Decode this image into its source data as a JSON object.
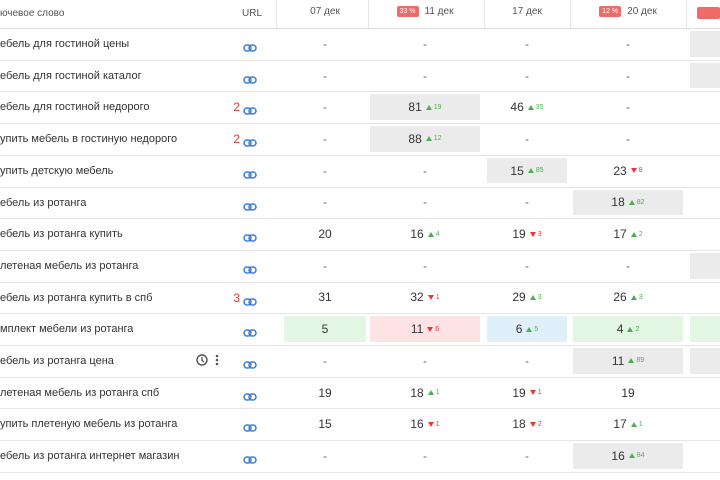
{
  "header": {
    "keyword": "ючевое слово",
    "url": "URL",
    "dates": [
      {
        "label": "07 дек"
      },
      {
        "label": "11 дек",
        "badge": "33 %"
      },
      {
        "label": "17 дек"
      },
      {
        "label": "20 дек",
        "badge": "12 %"
      }
    ]
  },
  "rows": [
    {
      "keyword": "ебель для гостиной цены",
      "cells": [
        {
          "v": "-"
        },
        {
          "v": "-"
        },
        {
          "v": "-"
        },
        {
          "v": "-"
        }
      ],
      "extra_bg": "grey"
    },
    {
      "keyword": "ебель для гостиной каталог",
      "cells": [
        {
          "v": "-"
        },
        {
          "v": "-"
        },
        {
          "v": "-"
        },
        {
          "v": "-"
        }
      ],
      "extra_bg": "grey"
    },
    {
      "keyword": "ебель для гостиной недорого",
      "count": 2,
      "cells": [
        {
          "v": "-"
        },
        {
          "v": 81,
          "d": 19,
          "dir": "up",
          "bg": "grey"
        },
        {
          "v": 46,
          "d": 35,
          "dir": "up"
        },
        {
          "v": "-"
        }
      ]
    },
    {
      "keyword": "упить мебель в гостиную недорого",
      "count": 2,
      "cells": [
        {
          "v": "-"
        },
        {
          "v": 88,
          "d": 12,
          "dir": "up",
          "bg": "grey"
        },
        {
          "v": "-"
        },
        {
          "v": "-"
        }
      ]
    },
    {
      "keyword": "упить детскую мебель",
      "cells": [
        {
          "v": "-"
        },
        {
          "v": "-"
        },
        {
          "v": 15,
          "d": 85,
          "dir": "up",
          "bg": "grey"
        },
        {
          "v": 23,
          "d": 8,
          "dir": "down"
        }
      ]
    },
    {
      "keyword": "ебель из ротанга",
      "cells": [
        {
          "v": "-"
        },
        {
          "v": "-"
        },
        {
          "v": "-"
        },
        {
          "v": 18,
          "d": 82,
          "dir": "up",
          "bg": "grey"
        }
      ]
    },
    {
      "keyword": "ебель из ротанга купить",
      "cells": [
        {
          "v": 20
        },
        {
          "v": 16,
          "d": 4,
          "dir": "up"
        },
        {
          "v": 19,
          "d": 3,
          "dir": "down"
        },
        {
          "v": 17,
          "d": 2,
          "dir": "up"
        }
      ]
    },
    {
      "keyword": "летеная мебель из ротанга",
      "cells": [
        {
          "v": "-"
        },
        {
          "v": "-"
        },
        {
          "v": "-"
        },
        {
          "v": "-"
        }
      ],
      "extra_bg": "grey"
    },
    {
      "keyword": "ебель из ротанга купить в спб",
      "count": 3,
      "cells": [
        {
          "v": 31
        },
        {
          "v": 32,
          "d": 1,
          "dir": "down"
        },
        {
          "v": 29,
          "d": 3,
          "dir": "up"
        },
        {
          "v": 26,
          "d": 3,
          "dir": "up"
        }
      ]
    },
    {
      "keyword": "мплект мебели из ротанга",
      "cells": [
        {
          "v": 5,
          "bg": "green"
        },
        {
          "v": 11,
          "d": 6,
          "dir": "down",
          "bg": "red"
        },
        {
          "v": 6,
          "d": 5,
          "dir": "up",
          "bg": "blue"
        },
        {
          "v": 4,
          "d": 2,
          "dir": "up",
          "bg": "green"
        }
      ],
      "extra_bg": "green"
    },
    {
      "keyword": "ебель из ротанга цена",
      "icons": true,
      "cells": [
        {
          "v": "-"
        },
        {
          "v": "-"
        },
        {
          "v": "-"
        },
        {
          "v": 11,
          "d": 89,
          "dir": "up",
          "bg": "grey"
        }
      ],
      "extra_bg": "grey"
    },
    {
      "keyword": "летеная мебель из ротанга спб",
      "cells": [
        {
          "v": 19
        },
        {
          "v": 18,
          "d": 1,
          "dir": "up"
        },
        {
          "v": 19,
          "d": 1,
          "dir": "down"
        },
        {
          "v": 19
        }
      ]
    },
    {
      "keyword": "упить плетеную мебель из ротанга",
      "cells": [
        {
          "v": 15
        },
        {
          "v": 16,
          "d": 1,
          "dir": "down"
        },
        {
          "v": 18,
          "d": 2,
          "dir": "down"
        },
        {
          "v": 17,
          "d": 1,
          "dir": "up"
        }
      ]
    },
    {
      "keyword": "ебель из ротанга интернет магазин",
      "cells": [
        {
          "v": "-"
        },
        {
          "v": "-"
        },
        {
          "v": "-"
        },
        {
          "v": 16,
          "d": 84,
          "dir": "up",
          "bg": "grey"
        }
      ]
    }
  ]
}
